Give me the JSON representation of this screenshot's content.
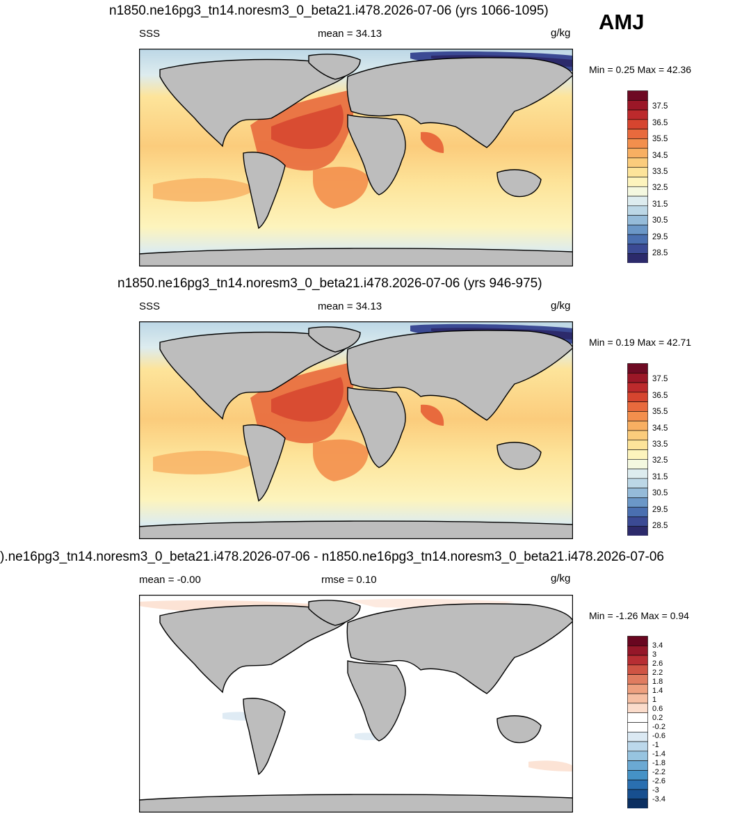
{
  "season": "AMJ",
  "panels": [
    {
      "title": "n1850.ne16pg3_tn14.noresm3_0_beta21.i478.2026-07-06 (yrs 1066-1095)",
      "left_label": "SSS",
      "center_label": "mean =  34.13",
      "units": "g/kg",
      "minmax": "Min =   0.25 Max =  42.36",
      "colorbar": {
        "colors": [
          "#2c2a6b",
          "#3b4a94",
          "#4a6fb0",
          "#6b97c7",
          "#95bbd9",
          "#bcd7e6",
          "#ddecef",
          "#f4f8e0",
          "#fdf4bd",
          "#fde49a",
          "#fbcc7c",
          "#f8af62",
          "#f38f4d",
          "#e86a3d",
          "#d6452f",
          "#bc2a2c",
          "#9b1727",
          "#6e0a23"
        ],
        "labels": [
          "37.5",
          "36.5",
          "35.5",
          "34.5",
          "33.5",
          "32.5",
          "31.5",
          "30.5",
          "29.5",
          "28.5"
        ]
      }
    },
    {
      "title": "n1850.ne16pg3_tn14.noresm3_0_beta21.i478.2026-07-06 (yrs 946-975)",
      "left_label": "SSS",
      "center_label": "mean =  34.13",
      "units": "g/kg",
      "minmax": "Min =   0.19 Max =  42.71",
      "colorbar": {
        "colors": [
          "#2c2a6b",
          "#3b4a94",
          "#4a6fb0",
          "#6b97c7",
          "#95bbd9",
          "#bcd7e6",
          "#ddecef",
          "#f4f8e0",
          "#fdf4bd",
          "#fde49a",
          "#fbcc7c",
          "#f8af62",
          "#f38f4d",
          "#e86a3d",
          "#d6452f",
          "#bc2a2c",
          "#9b1727",
          "#6e0a23"
        ],
        "labels": [
          "37.5",
          "36.5",
          "35.5",
          "34.5",
          "33.5",
          "32.5",
          "31.5",
          "30.5",
          "29.5",
          "28.5"
        ]
      }
    },
    {
      "title": ").ne16pg3_tn14.noresm3_0_beta21.i478.2026-07-06 - n1850.ne16pg3_tn14.noresm3_0_beta21.i478.2026-07-06",
      "left_label": "mean =  -0.00",
      "center_label": "rmse =   0.10",
      "units": "g/kg",
      "minmax": "Min =  -1.26 Max =   0.94",
      "colorbar": {
        "colors": [
          "#0b2f61",
          "#174f8f",
          "#2a6fb0",
          "#4592c6",
          "#6ba9d3",
          "#97c4e0",
          "#bcd8eb",
          "#dbe9f3",
          "#ffffff",
          "#ffffff",
          "#fbdccb",
          "#f6bfa3",
          "#eea07f",
          "#e07c60",
          "#cf5444",
          "#b72e33",
          "#951729",
          "#690620"
        ],
        "labels": [
          "3.4",
          "3",
          "2.6",
          "2.2",
          "1.8",
          "1.4",
          "1",
          "0.6",
          "0.2",
          "-0.2",
          "-0.6",
          "-1",
          "-1.4",
          "-1.8",
          "-2.2",
          "-2.6",
          "-3",
          "-3.4"
        ]
      }
    }
  ]
}
